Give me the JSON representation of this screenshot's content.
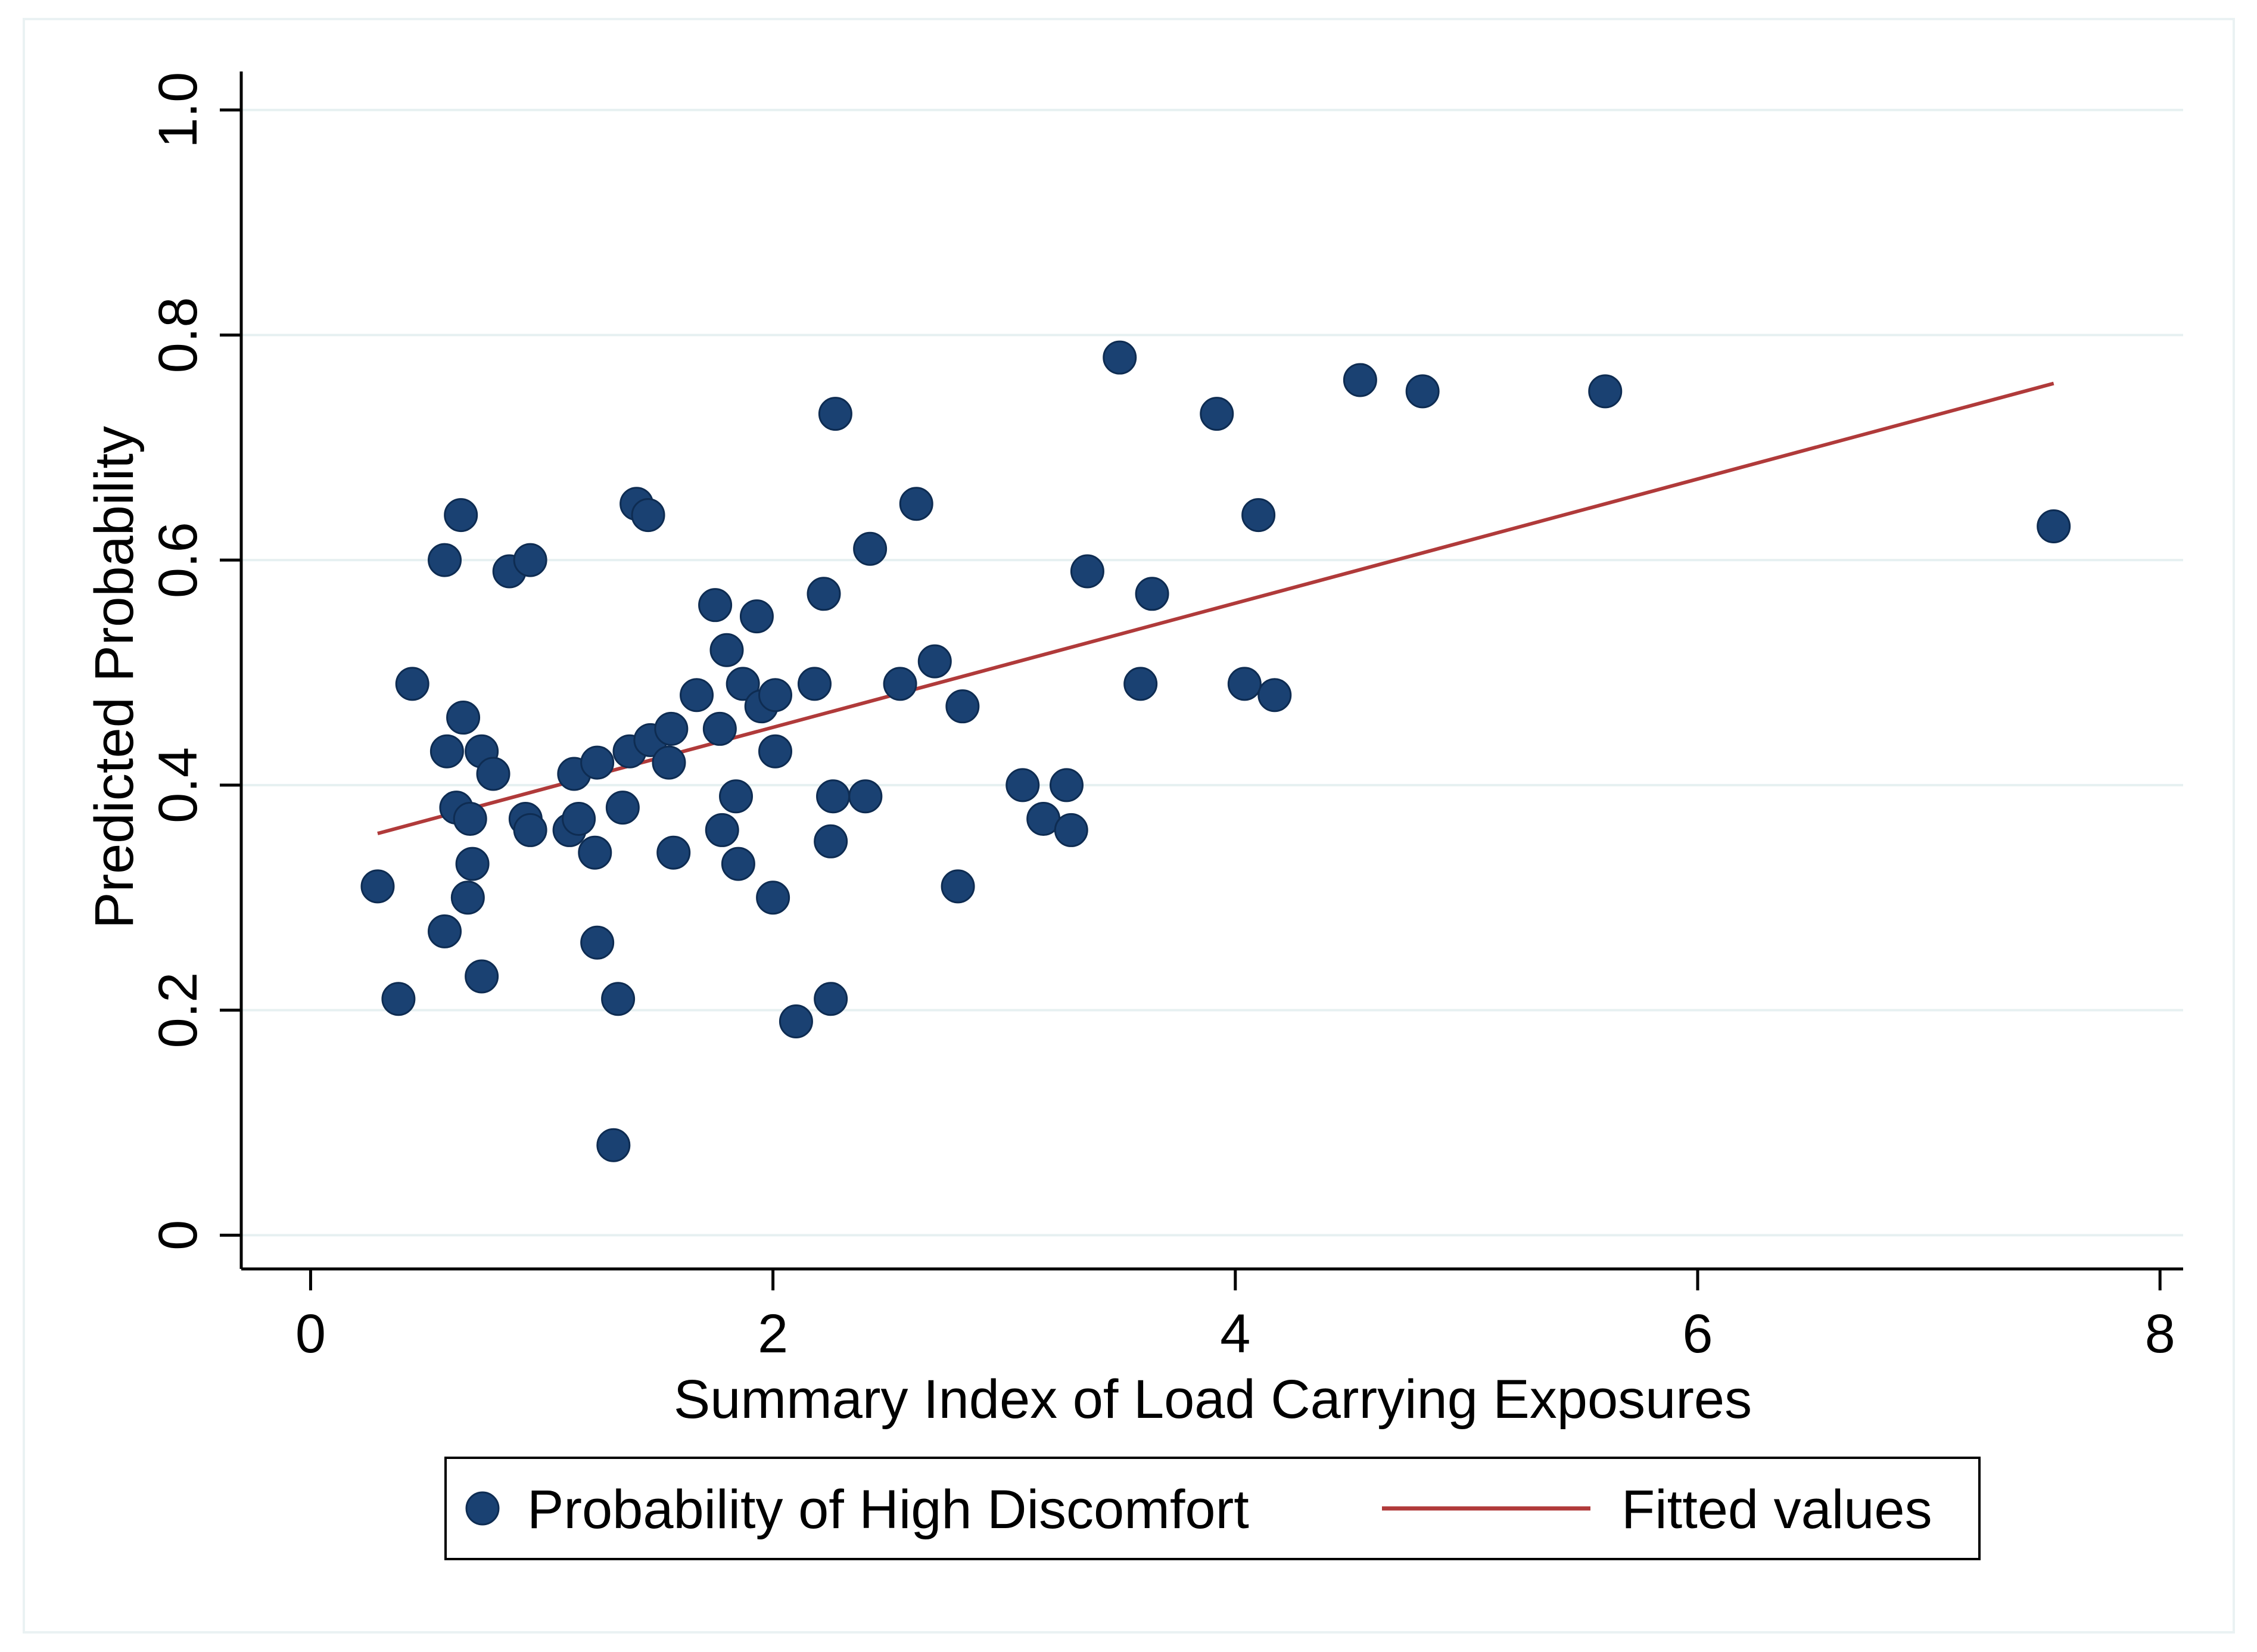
{
  "chart_data": {
    "type": "scatter",
    "xlabel": "Summary Index of Load Carrying Exposures",
    "ylabel": "Predicted Probability",
    "xlim": [
      -0.3,
      8.1
    ],
    "ylim": [
      -0.03,
      1.03
    ],
    "xticks": [
      0,
      2,
      4,
      6,
      8
    ],
    "xtick_labels": [
      "0",
      "2",
      "4",
      "6",
      "8"
    ],
    "yticks": [
      0,
      0.2,
      0.4,
      0.6,
      0.8,
      1.0
    ],
    "ytick_labels": [
      "0",
      "0.2",
      "0.4",
      "0.6",
      "0.8",
      "1.0"
    ],
    "grid": "horizontal",
    "legend_position": "bottom",
    "colors": {
      "points": "#1a4172",
      "fit": "#b03a3a",
      "grid": "#e6f0f1",
      "axis": "#000000"
    },
    "series": [
      {
        "name": "Probability of High Discomfort",
        "kind": "scatter",
        "points": [
          [
            0.29,
            0.31
          ],
          [
            0.38,
            0.21
          ],
          [
            0.44,
            0.49
          ],
          [
            0.58,
            0.6
          ],
          [
            0.58,
            0.27
          ],
          [
            0.59,
            0.43
          ],
          [
            0.63,
            0.38
          ],
          [
            0.65,
            0.64
          ],
          [
            0.66,
            0.46
          ],
          [
            0.68,
            0.3
          ],
          [
            0.69,
            0.37
          ],
          [
            0.7,
            0.33
          ],
          [
            0.74,
            0.43
          ],
          [
            0.74,
            0.23
          ],
          [
            0.79,
            0.41
          ],
          [
            0.86,
            0.59
          ],
          [
            0.93,
            0.37
          ],
          [
            0.95,
            0.36
          ],
          [
            0.95,
            0.6
          ],
          [
            1.12,
            0.36
          ],
          [
            1.14,
            0.41
          ],
          [
            1.16,
            0.37
          ],
          [
            1.23,
            0.34
          ],
          [
            1.24,
            0.42
          ],
          [
            1.24,
            0.26
          ],
          [
            1.31,
            0.08
          ],
          [
            1.33,
            0.21
          ],
          [
            1.35,
            0.38
          ],
          [
            1.38,
            0.43
          ],
          [
            1.41,
            0.65
          ],
          [
            1.46,
            0.64
          ],
          [
            1.47,
            0.44
          ],
          [
            1.55,
            0.42
          ],
          [
            1.56,
            0.45
          ],
          [
            1.57,
            0.34
          ],
          [
            1.67,
            0.48
          ],
          [
            1.75,
            0.56
          ],
          [
            1.77,
            0.45
          ],
          [
            1.78,
            0.36
          ],
          [
            1.8,
            0.52
          ],
          [
            1.84,
            0.39
          ],
          [
            1.85,
            0.33
          ],
          [
            1.87,
            0.49
          ],
          [
            1.93,
            0.55
          ],
          [
            1.95,
            0.47
          ],
          [
            2.0,
            0.3
          ],
          [
            2.01,
            0.48
          ],
          [
            2.01,
            0.43
          ],
          [
            2.1,
            0.19
          ],
          [
            2.18,
            0.49
          ],
          [
            2.22,
            0.57
          ],
          [
            2.25,
            0.35
          ],
          [
            2.25,
            0.21
          ],
          [
            2.26,
            0.39
          ],
          [
            2.27,
            0.73
          ],
          [
            2.4,
            0.39
          ],
          [
            2.42,
            0.61
          ],
          [
            2.55,
            0.49
          ],
          [
            2.62,
            0.65
          ],
          [
            2.7,
            0.51
          ],
          [
            2.8,
            0.31
          ],
          [
            2.82,
            0.47
          ],
          [
            3.08,
            0.4
          ],
          [
            3.17,
            0.37
          ],
          [
            3.27,
            0.4
          ],
          [
            3.29,
            0.36
          ],
          [
            3.36,
            0.59
          ],
          [
            3.5,
            0.78
          ],
          [
            3.59,
            0.49
          ],
          [
            3.64,
            0.57
          ],
          [
            3.92,
            0.73
          ],
          [
            4.04,
            0.49
          ],
          [
            4.1,
            0.64
          ],
          [
            4.17,
            0.48
          ],
          [
            4.54,
            0.76
          ],
          [
            4.81,
            0.75
          ],
          [
            5.6,
            0.75
          ],
          [
            7.54,
            0.63
          ]
        ]
      },
      {
        "name": "Fitted values",
        "kind": "line",
        "points": [
          [
            0.29,
            0.357
          ],
          [
            7.54,
            0.757
          ]
        ]
      }
    ],
    "legend": [
      "Probability of High Discomfort",
      "Fitted values"
    ]
  }
}
